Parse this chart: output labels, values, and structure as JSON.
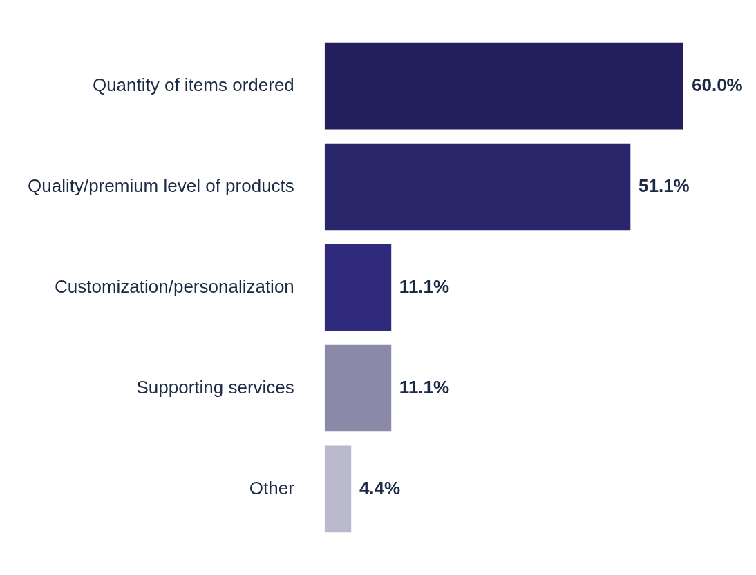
{
  "chart_data": {
    "type": "bar",
    "orientation": "horizontal",
    "categories": [
      "Quantity of items ordered",
      "Quality/premium level of products",
      "Customization/personalization",
      "Supporting services",
      "Other"
    ],
    "values": [
      60.0,
      51.1,
      11.1,
      11.1,
      4.4
    ],
    "colors": [
      "#231f5c",
      "#29266b",
      "#2f2a7b",
      "#8b89a8",
      "#bbb9cc"
    ],
    "value_labels": [
      "60.0%",
      "51.1%",
      "11.1%",
      "11.1%",
      "4.4%"
    ],
    "legend": false
  }
}
